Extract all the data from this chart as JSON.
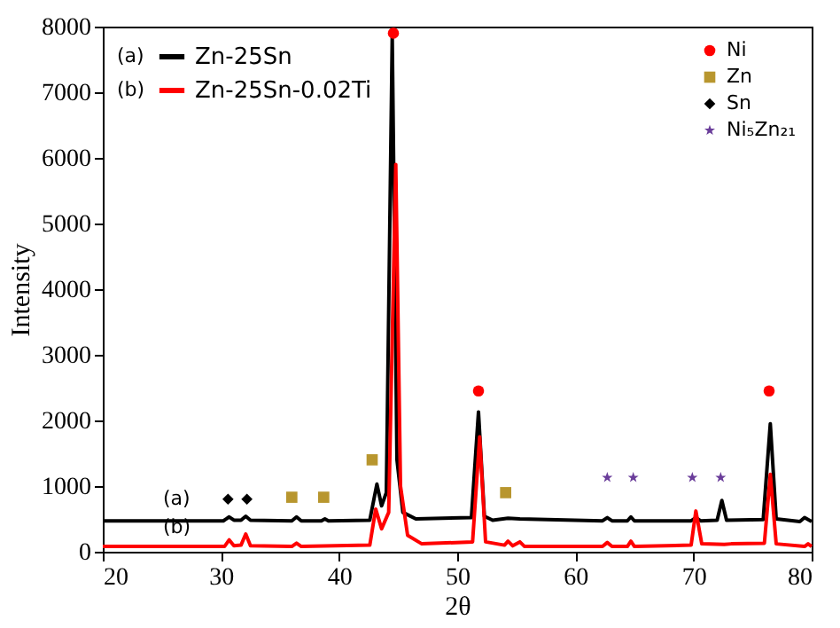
{
  "chart_data": {
    "type": "line",
    "xlabel": "2θ",
    "ylabel": "Intensity",
    "xlim": [
      20,
      80
    ],
    "xticks": [
      20,
      30,
      40,
      50,
      60,
      70,
      80
    ],
    "ylim": [
      0,
      8000
    ],
    "yticks": [
      0,
      1000,
      2000,
      3000,
      4000,
      5000,
      6000,
      7000,
      8000
    ],
    "grid": false,
    "legend": "top left",
    "annotations": [
      "(a)",
      "(b)",
      "(a)",
      "(b)"
    ],
    "series": [
      {
        "name": "Zn-25Sn",
        "type": "line",
        "color": "#000000",
        "x": [
          20,
          30.2,
          30.7,
          31.1,
          31.7,
          32.1,
          32.5,
          36,
          36.4,
          36.8,
          38.5,
          38.8,
          39.1,
          42.6,
          43.2,
          43.6,
          44,
          44.5,
          44.9,
          45.4,
          46.5,
          51.2,
          51.8,
          52.3,
          53,
          54.3,
          55.3,
          62.3,
          62.7,
          63.1,
          64.4,
          64.7,
          65,
          69.8,
          70.2,
          70.6,
          72,
          72.4,
          72.8,
          75.9,
          76.5,
          77,
          79,
          79.4,
          80
        ],
        "values": [
          470,
          470,
          530,
          480,
          480,
          540,
          480,
          470,
          530,
          470,
          470,
          500,
          470,
          480,
          1030,
          700,
          900,
          7850,
          1400,
          600,
          500,
          520,
          2130,
          540,
          480,
          510,
          500,
          470,
          520,
          470,
          470,
          530,
          470,
          470,
          520,
          470,
          480,
          780,
          480,
          490,
          1950,
          500,
          460,
          520,
          460
        ]
      },
      {
        "name": "Zn-25Sn-0.02Ti",
        "type": "line",
        "color": "#ff0000",
        "x": [
          20,
          30.3,
          30.7,
          31.1,
          31.7,
          32.1,
          32.5,
          36,
          36.4,
          36.8,
          42.6,
          43.1,
          43.6,
          44.2,
          44.8,
          45.2,
          45.8,
          47,
          51.3,
          51.9,
          52.4,
          54,
          54.3,
          54.7,
          55.3,
          55.7,
          62.3,
          62.7,
          63.1,
          64.4,
          64.7,
          65,
          69.8,
          70.2,
          70.7,
          72.6,
          73.2,
          76,
          76.5,
          77,
          79.4,
          79.7,
          80
        ],
        "values": [
          80,
          80,
          180,
          90,
          100,
          270,
          90,
          80,
          130,
          80,
          100,
          650,
          350,
          600,
          5900,
          1000,
          250,
          120,
          150,
          1750,
          150,
          100,
          160,
          90,
          150,
          80,
          80,
          140,
          80,
          80,
          160,
          80,
          100,
          620,
          120,
          110,
          120,
          130,
          1180,
          120,
          80,
          120,
          80
        ]
      },
      {
        "name": "Ni",
        "type": "scatter",
        "marker": "circle",
        "color": "#ff0000",
        "x": [
          44.6,
          51.8,
          76.4
        ],
        "values": [
          7900,
          2450,
          2450
        ]
      },
      {
        "name": "Zn",
        "type": "scatter",
        "marker": "square",
        "color": "#b8962e",
        "x": [
          36,
          38.7,
          42.8,
          54.1
        ],
        "values": [
          830,
          830,
          1400,
          900
        ]
      },
      {
        "name": "Sn",
        "type": "scatter",
        "marker": "diamond",
        "color": "#000000",
        "x": [
          30.6,
          32.2
        ],
        "values": [
          800,
          800
        ]
      },
      {
        "name": "Ni₅Zn₂₁",
        "type": "scatter",
        "marker": "star",
        "color": "#6a3d9a",
        "x": [
          62.7,
          64.9,
          69.9,
          72.3
        ],
        "values": [
          1130,
          1130,
          1130,
          1130
        ]
      }
    ]
  }
}
